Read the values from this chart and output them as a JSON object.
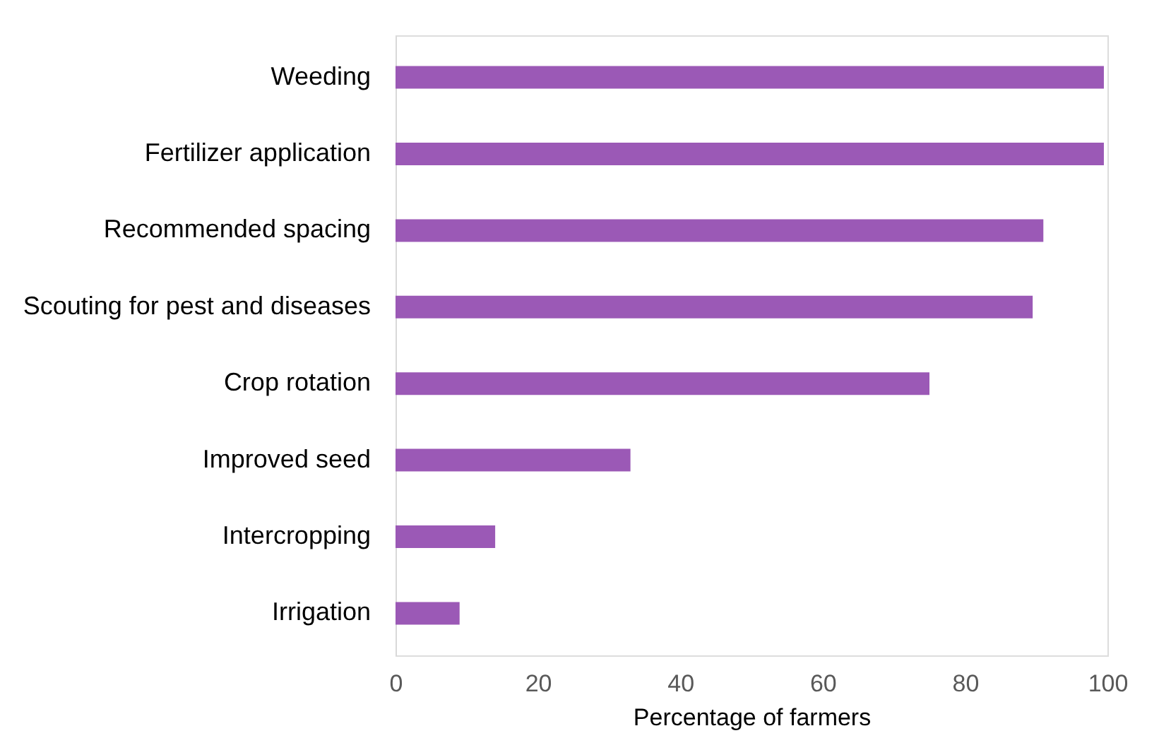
{
  "chart_data": {
    "type": "bar",
    "orientation": "horizontal",
    "xlabel": "Percentage of farmers",
    "categories": [
      "Weeding",
      "Fertilizer application",
      "Recommended spacing",
      "Scouting for pest and diseases",
      "Crop rotation",
      "Improved seed",
      "Intercropping",
      "Irrigation"
    ],
    "values": [
      99.5,
      99.5,
      91,
      89.5,
      75,
      33,
      14,
      9
    ],
    "color": "#9b59b6",
    "xlim": [
      0,
      100
    ],
    "xticks": [
      0,
      20,
      40,
      60,
      80,
      100
    ],
    "grid": false
  }
}
